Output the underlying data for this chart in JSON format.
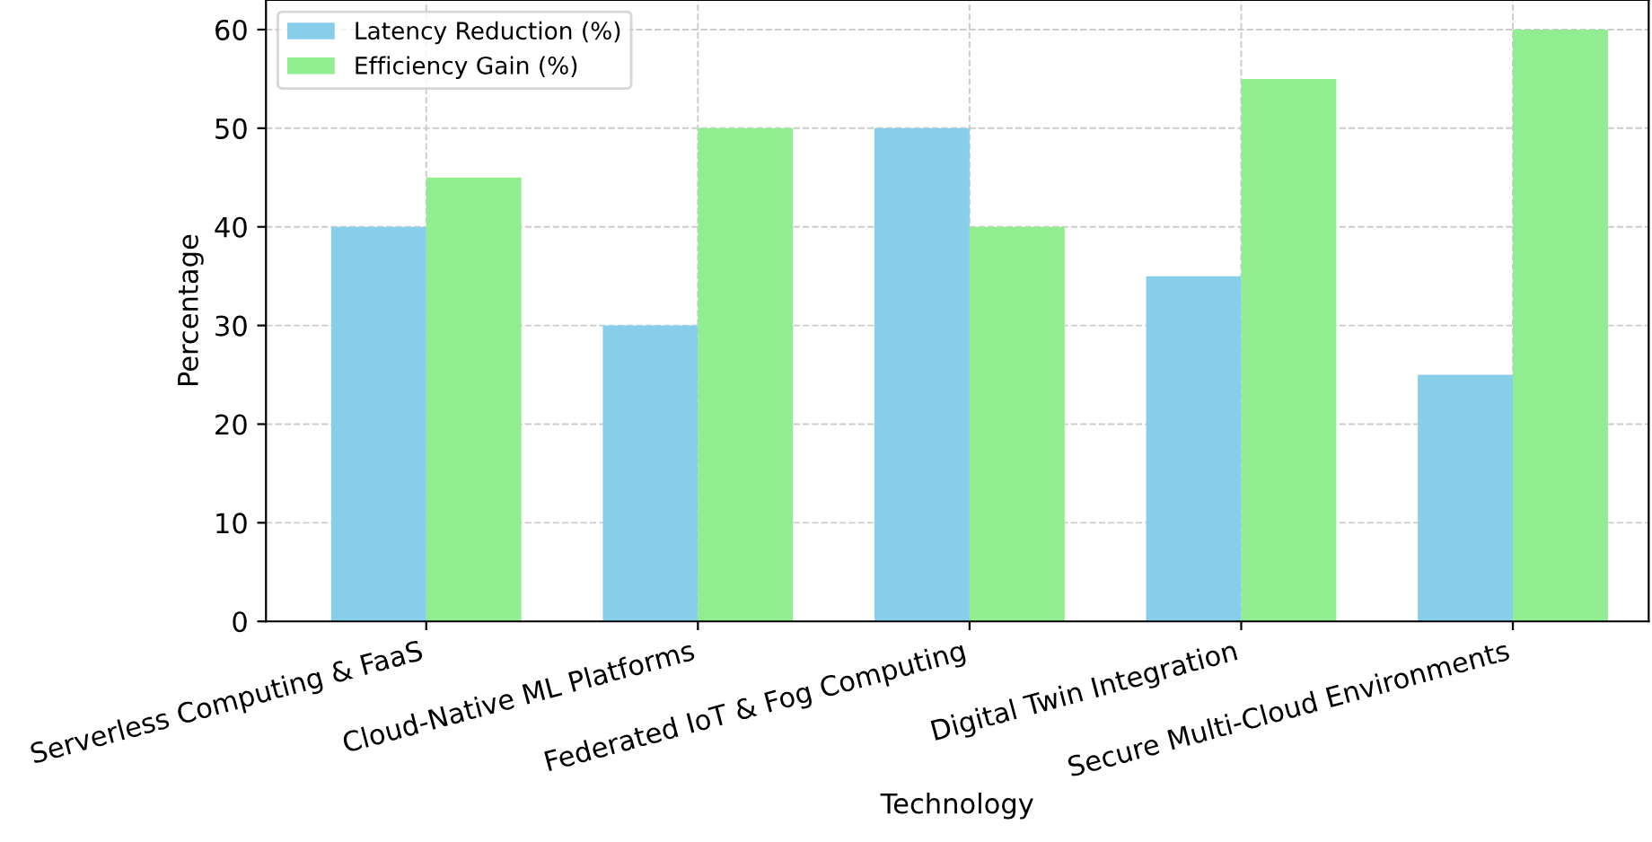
{
  "chart_data": {
    "type": "bar",
    "xlabel": "Technology",
    "ylabel": "Percentage",
    "categories": [
      "Serverless Computing & FaaS",
      "Cloud-Native ML Platforms",
      "Federated IoT & Fog Computing",
      "Digital Twin Integration",
      "Secure Multi-Cloud Environments"
    ],
    "series": [
      {
        "name": "Latency Reduction (%)",
        "color": "#87ceeb",
        "values": [
          40,
          30,
          50,
          35,
          25
        ]
      },
      {
        "name": "Efficiency Gain (%)",
        "color": "#90ee90",
        "values": [
          45,
          50,
          40,
          55,
          60
        ]
      }
    ],
    "ylim": [
      0,
      63
    ],
    "yticks": [
      0,
      10,
      20,
      30,
      40,
      50,
      60
    ],
    "grid": true,
    "legend": "top left"
  }
}
